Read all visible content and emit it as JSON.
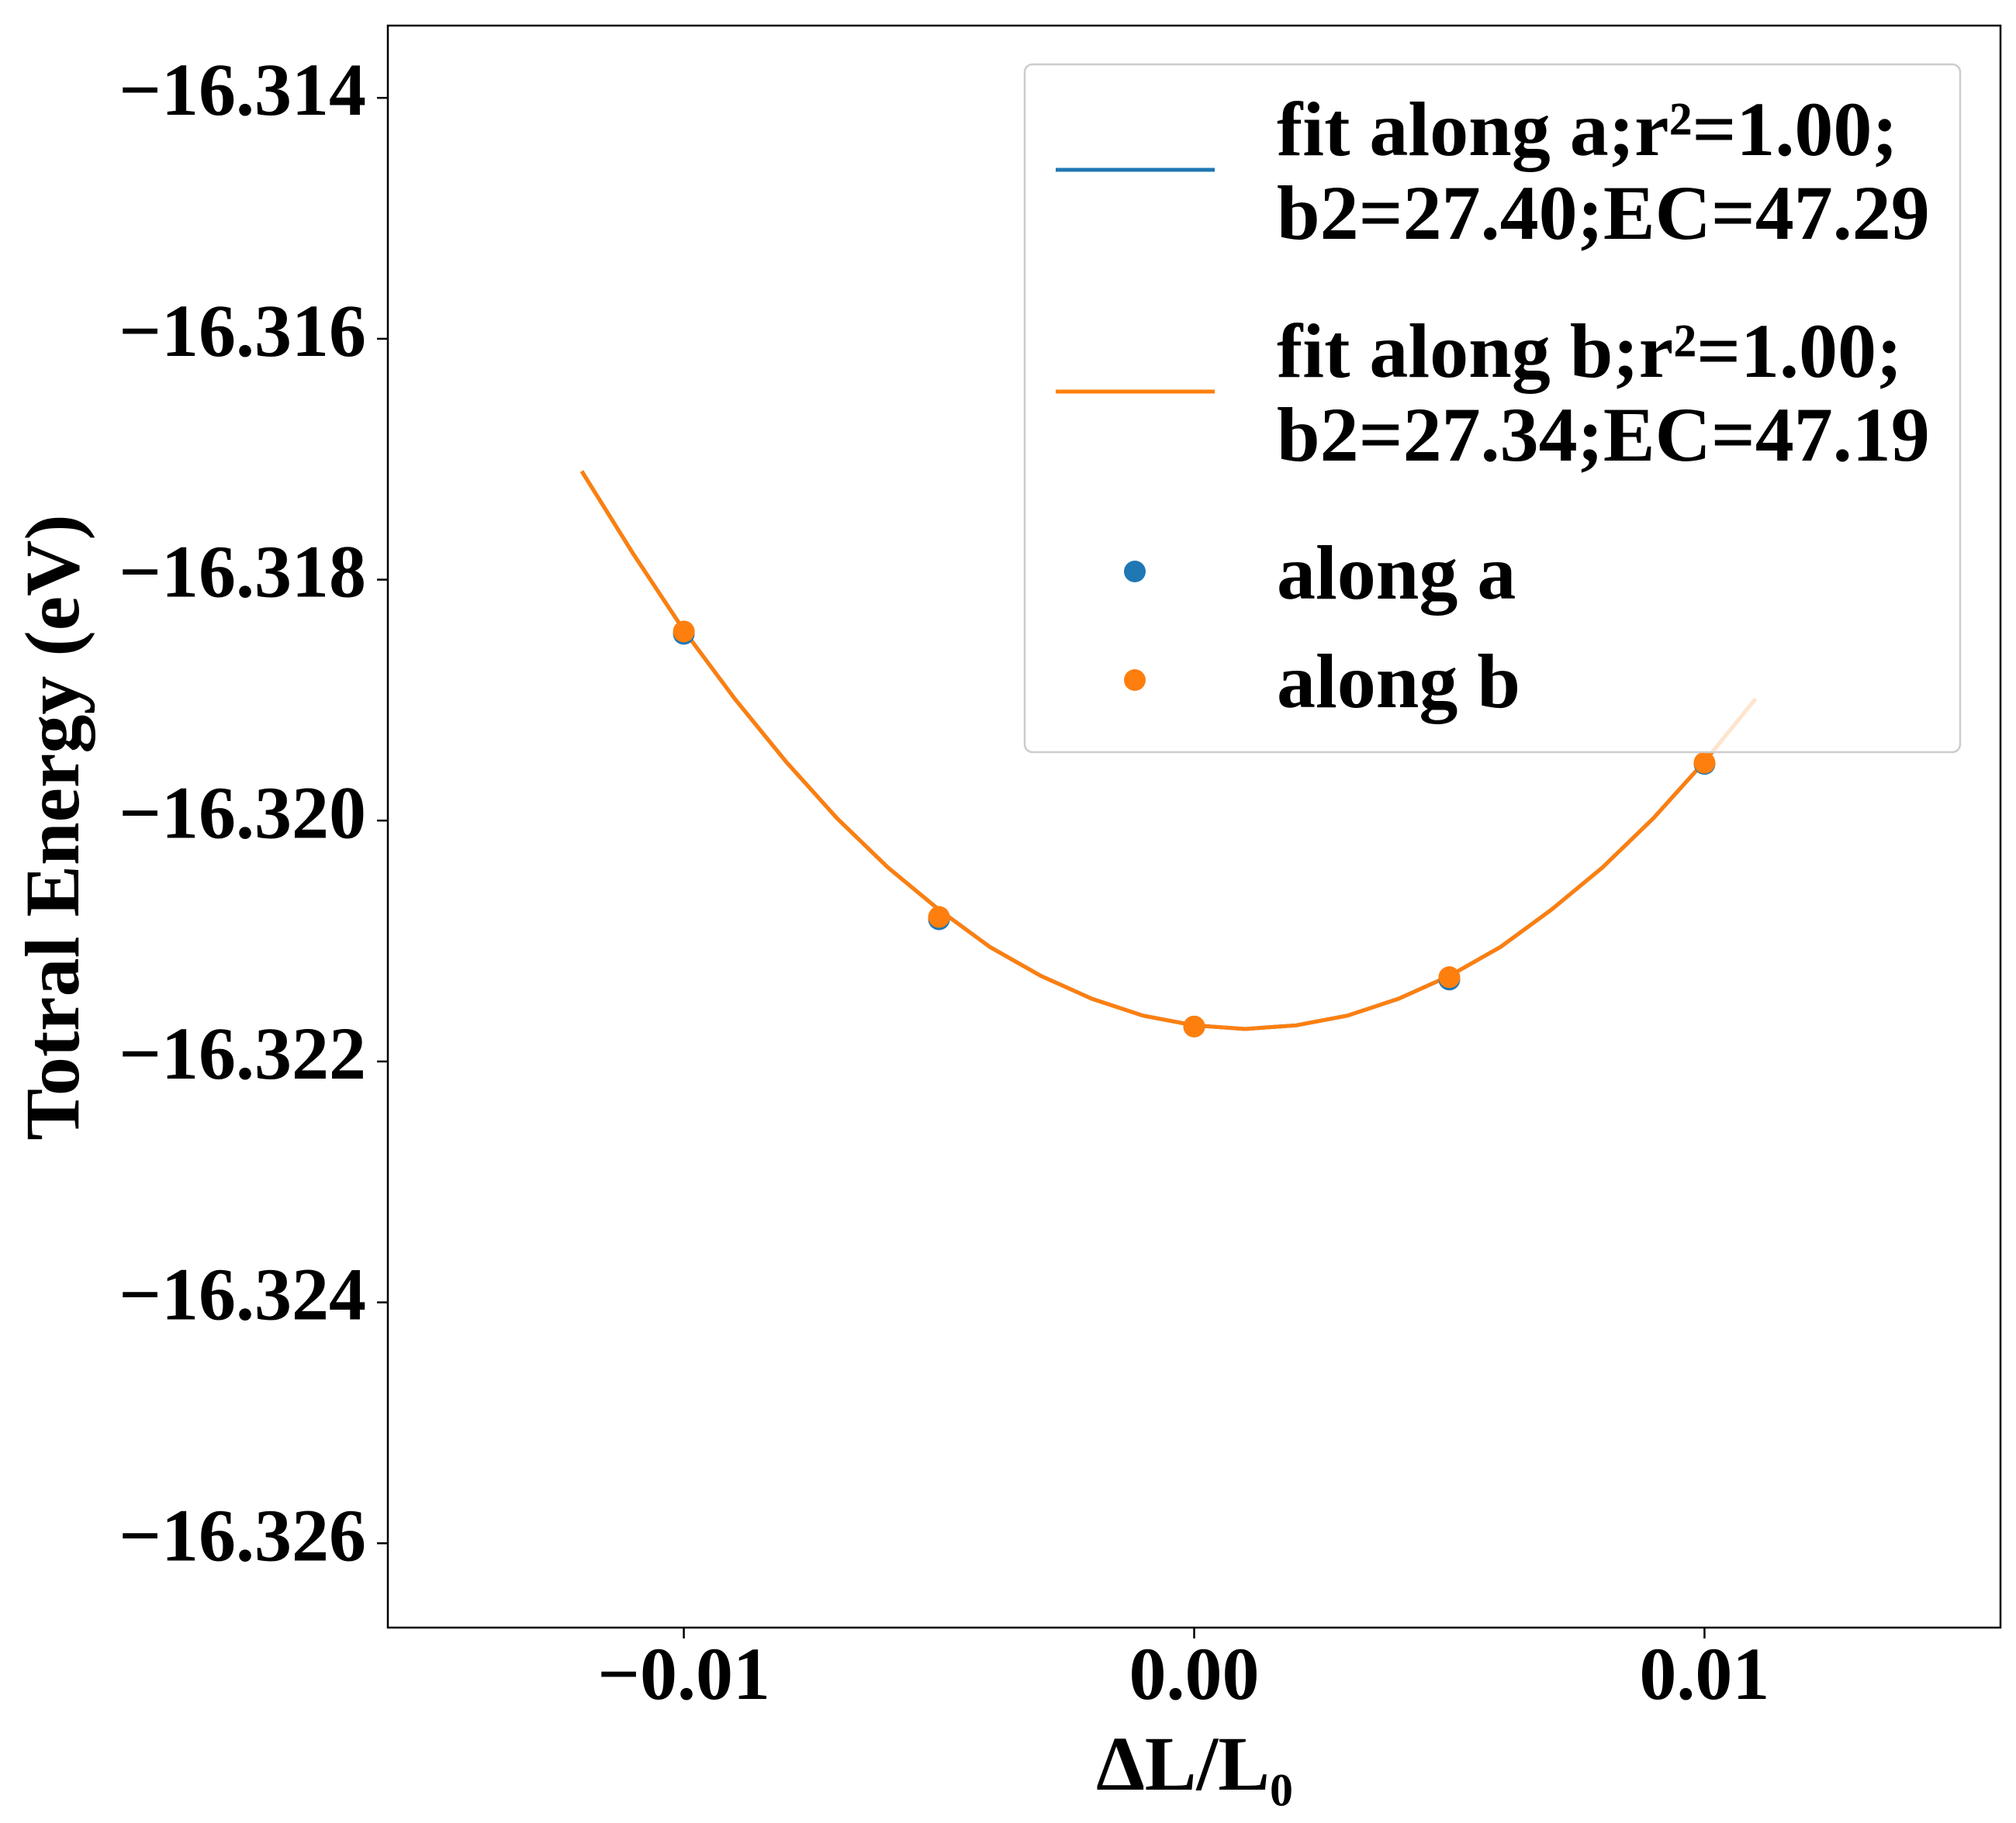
{
  "chart_data": {
    "type": "line",
    "xlabel": "ΔL/L₀",
    "ylabel": "Totral Energy (eV)",
    "xlim": [
      -0.0158,
      0.0158
    ],
    "ylim": [
      -16.3267,
      -16.3134
    ],
    "xticks": [
      {
        "value": -0.01,
        "label": "−0.01"
      },
      {
        "value": 0,
        "label": "0.00"
      },
      0.01
    ],
    "yticks": [
      {
        "value": -16.314,
        "label": "−16.314"
      },
      {
        "value": -16.316,
        "label": "−16.316"
      },
      {
        "value": -16.318,
        "label": "−16.318"
      },
      {
        "value": -16.32,
        "label": "−16.320"
      },
      {
        "value": -16.322,
        "label": "−16.322"
      },
      {
        "value": -16.324,
        "label": "−16.324"
      },
      {
        "value": -16.326,
        "label": "−16.326"
      }
    ],
    "series": [
      {
        "name": [
          "fit along a;r²=1.00;",
          "b2=27.40;EC=47.29"
        ],
        "kind": "line",
        "color": "#1f77b4",
        "x": [
          -0.012,
          -0.011,
          -0.01,
          -0.009,
          -0.008,
          -0.007,
          -0.006,
          -0.005,
          -0.004,
          -0.003,
          -0.002,
          -0.001,
          0,
          0.001,
          0.002,
          0.003,
          0.004,
          0.005,
          0.006,
          0.007,
          0.008,
          0.009,
          0.01,
          0.011
        ],
        "values": [
          -16.3171,
          -16.31778,
          -16.31842,
          -16.31899,
          -16.31951,
          -16.31998,
          -16.32039,
          -16.32074,
          -16.32105,
          -16.32129,
          -16.32148,
          -16.32162,
          -16.3217,
          -16.32173,
          -16.3217,
          -16.32162,
          -16.32148,
          -16.32129,
          -16.32105,
          -16.32074,
          -16.32039,
          -16.31998,
          -16.31951,
          -16.31899
        ]
      },
      {
        "name": [
          "fit along b;r²=1.00;",
          "b2=27.34;EC=47.19"
        ],
        "kind": "line",
        "color": "#ff7f0e",
        "x": [
          -0.012,
          -0.011,
          -0.01,
          -0.009,
          -0.008,
          -0.007,
          -0.006,
          -0.005,
          -0.004,
          -0.003,
          -0.002,
          -0.001,
          0,
          0.001,
          0.002,
          0.003,
          0.004,
          0.005,
          0.006,
          0.007,
          0.008,
          0.009,
          0.01,
          0.011
        ],
        "values": [
          -16.3171,
          -16.31778,
          -16.31842,
          -16.31899,
          -16.31951,
          -16.31998,
          -16.32039,
          -16.32074,
          -16.32105,
          -16.32129,
          -16.32148,
          -16.32162,
          -16.3217,
          -16.32173,
          -16.3217,
          -16.32162,
          -16.32148,
          -16.32129,
          -16.32105,
          -16.32074,
          -16.32039,
          -16.31998,
          -16.31951,
          -16.31899
        ]
      },
      {
        "name": [
          "along a"
        ],
        "kind": "scatter",
        "color": "#1f77b4",
        "x": [
          -0.01,
          -0.005,
          0,
          0.005,
          0.01
        ],
        "values": [
          -16.31845,
          -16.32082,
          -16.32171,
          -16.32132,
          -16.31953
        ]
      },
      {
        "name": [
          "along b"
        ],
        "kind": "scatter",
        "color": "#ff7f0e",
        "x": [
          -0.01,
          -0.005,
          0,
          0.005,
          0.01
        ],
        "values": [
          -16.31843,
          -16.3208,
          -16.32171,
          -16.3213,
          -16.31952
        ]
      }
    ]
  }
}
